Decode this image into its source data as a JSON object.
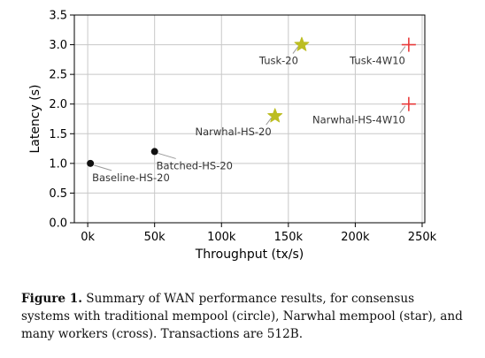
{
  "chart_data": {
    "type": "scatter",
    "xlabel": "Throughput (tx/s)",
    "ylabel": "Latency (s)",
    "xlim": [
      -10000,
      252000
    ],
    "ylim": [
      0,
      3.5
    ],
    "xticks": [
      {
        "value": 0,
        "label": "0k"
      },
      {
        "value": 50000,
        "label": "50k"
      },
      {
        "value": 100000,
        "label": "100k"
      },
      {
        "value": 150000,
        "label": "150k"
      },
      {
        "value": 200000,
        "label": "200k"
      },
      {
        "value": 250000,
        "label": "250k"
      }
    ],
    "yticks": [
      {
        "value": 0,
        "label": "0.0"
      },
      {
        "value": 0.5,
        "label": "0.5"
      },
      {
        "value": 1.0,
        "label": "1.0"
      },
      {
        "value": 1.5,
        "label": "1.5"
      },
      {
        "value": 2.0,
        "label": "2.0"
      },
      {
        "value": 2.5,
        "label": "2.5"
      },
      {
        "value": 3.0,
        "label": "3.0"
      },
      {
        "value": 3.5,
        "label": "3.5"
      }
    ],
    "grid": true,
    "points": [
      {
        "label": "Baseline-HS-20",
        "x": 2000,
        "y": 1.0,
        "marker": "circle",
        "color": "#111111",
        "label_pos": "below-right"
      },
      {
        "label": "Batched-HS-20",
        "x": 50000,
        "y": 1.2,
        "marker": "circle",
        "color": "#111111",
        "label_pos": "below-right"
      },
      {
        "label": "Narwhal-HS-20",
        "x": 140000,
        "y": 1.8,
        "marker": "star",
        "color": "#bcbd22",
        "label_pos": "below-left"
      },
      {
        "label": "Tusk-20",
        "x": 160000,
        "y": 3.0,
        "marker": "star",
        "color": "#bcbd22",
        "label_pos": "below-left"
      },
      {
        "label": "Narwhal-HS-4W10",
        "x": 240000,
        "y": 2.0,
        "marker": "cross",
        "color": "#e83b3b",
        "label_pos": "below-left"
      },
      {
        "label": "Tusk-4W10",
        "x": 240000,
        "y": 3.0,
        "marker": "cross",
        "color": "#e83b3b",
        "label_pos": "below-left"
      }
    ]
  },
  "caption": {
    "label": "Figure 1.",
    "text": "Summary of WAN performance results, for consensus systems with traditional mempool (circle), Narwhal mempool (star), and many workers (cross). Transactions are 512B."
  }
}
